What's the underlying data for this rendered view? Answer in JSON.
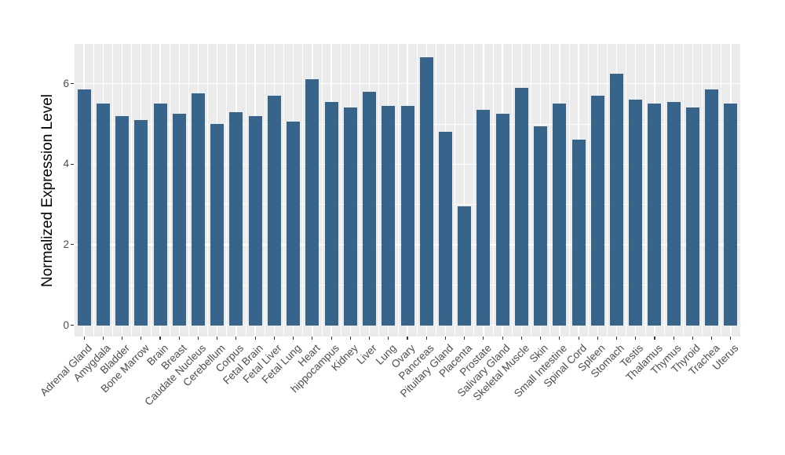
{
  "chart_data": {
    "type": "bar",
    "ylabel": "Normalized Expression Level",
    "xlabel": "",
    "categories": [
      "Adrenal Gland",
      "Amygdala",
      "Bladder",
      "Bone Marrow",
      "Brain",
      "Breast",
      "Caudate Nucleus",
      "Cerebellum",
      "Corpus",
      "Fetal Brain",
      "Fetal Liver",
      "Fetal Lung",
      "Heart",
      "hippocampus",
      "Kidney",
      "Liver",
      "Lung",
      "Ovary",
      "Pancreas",
      "Pituitary Gland",
      "Placenta",
      "Prostate",
      "Salivary Gland",
      "Skeletal Muscle",
      "Skin",
      "Small Intestine",
      "Spinal Cord",
      "Spleen",
      "Stomach",
      "Testis",
      "Thalamus",
      "Thymus",
      "Thyroid",
      "Trachea",
      "Uterus"
    ],
    "values": [
      5.85,
      5.5,
      5.2,
      5.1,
      5.5,
      5.25,
      5.75,
      5.0,
      5.3,
      5.2,
      5.7,
      5.05,
      6.1,
      5.55,
      5.4,
      5.8,
      5.45,
      5.45,
      6.65,
      4.8,
      2.95,
      5.35,
      5.25,
      5.9,
      4.95,
      5.5,
      4.6,
      5.7,
      6.25,
      5.6,
      5.5,
      5.55,
      5.4,
      5.85,
      5.5
    ],
    "ylim": [
      0,
      7
    ],
    "yticks": [
      0,
      2,
      4,
      6
    ],
    "yticks_minor": [
      1,
      3,
      5
    ],
    "x_tick_rotation_deg": 45,
    "legend": "none",
    "grid": "on",
    "colors": {
      "bar": "#36648B",
      "panel_bg": "#EBEBEB",
      "grid": "#FFFFFF",
      "tick_label": "#4D4D4D",
      "axis_title": "#000000",
      "tick_mark": "#333333",
      "background": "#FFFFFF"
    }
  }
}
